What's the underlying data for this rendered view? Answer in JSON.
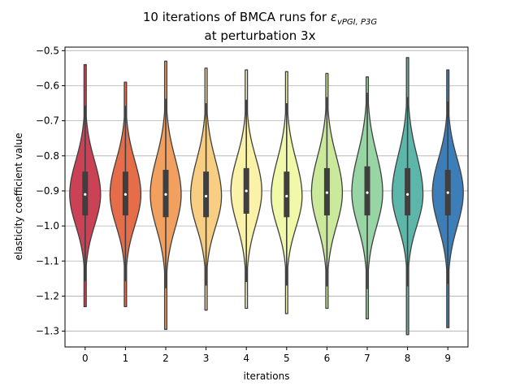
{
  "chart_data": {
    "type": "violin",
    "title_line1": "10 iterations of BMCA runs for ",
    "title_symbol": "ε",
    "title_subscript": "vPGI, P3G",
    "title_line2": "at perturbation 3x",
    "xlabel": "iterations",
    "ylabel": "elasticity coefficient value",
    "categories": [
      "0",
      "1",
      "2",
      "3",
      "4",
      "5",
      "6",
      "7",
      "8",
      "9"
    ],
    "ylim": [
      -1.345,
      -0.49
    ],
    "yticks": [
      -0.5,
      -0.6,
      -0.7,
      -0.8,
      -0.9,
      -1.0,
      -1.1,
      -1.2,
      -1.3
    ],
    "ytick_labels": [
      "−0.5",
      "−0.6",
      "−0.7",
      "−0.8",
      "−0.9",
      "−1.0",
      "−1.1",
      "−1.2",
      "−1.3"
    ],
    "grid": "horizontal",
    "colors": [
      "#cb4256",
      "#e66d4a",
      "#f2a05f",
      "#f8ce83",
      "#fbf2a9",
      "#f0f8aa",
      "#cbe99b",
      "#98d5a4",
      "#5cb6aa",
      "#3e7eb8"
    ],
    "series": [
      {
        "min": -1.23,
        "max": -0.54,
        "q1": -0.97,
        "median": -0.91,
        "q3": -0.845
      },
      {
        "min": -1.23,
        "max": -0.59,
        "q1": -0.97,
        "median": -0.91,
        "q3": -0.845
      },
      {
        "min": -1.295,
        "max": -0.53,
        "q1": -0.975,
        "median": -0.91,
        "q3": -0.84
      },
      {
        "min": -1.24,
        "max": -0.55,
        "q1": -0.975,
        "median": -0.915,
        "q3": -0.845
      },
      {
        "min": -1.235,
        "max": -0.555,
        "q1": -0.965,
        "median": -0.9,
        "q3": -0.835
      },
      {
        "min": -1.25,
        "max": -0.56,
        "q1": -0.975,
        "median": -0.915,
        "q3": -0.845
      },
      {
        "min": -1.235,
        "max": -0.565,
        "q1": -0.97,
        "median": -0.905,
        "q3": -0.835
      },
      {
        "min": -1.265,
        "max": -0.575,
        "q1": -0.97,
        "median": -0.905,
        "q3": -0.83
      },
      {
        "min": -1.31,
        "max": -0.52,
        "q1": -0.97,
        "median": -0.91,
        "q3": -0.835
      },
      {
        "min": -1.29,
        "max": -0.555,
        "q1": -0.97,
        "median": -0.905,
        "q3": -0.84
      }
    ]
  }
}
